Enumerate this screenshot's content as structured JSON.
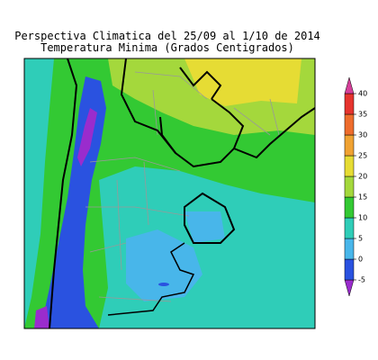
{
  "header": {
    "title": "Perspectiva Climatica del 25/09 al 1/10 de 2014",
    "subtitle": "Temperatura Minima (Grados Centigrados)"
  },
  "colorbar": {
    "ticks": [
      -5,
      0,
      5,
      10,
      15,
      20,
      25,
      30,
      35,
      40
    ],
    "colors": [
      "#9a2ccd",
      "#2a52e0",
      "#48b6ea",
      "#2fcdb8",
      "#33c933",
      "#a4d83c",
      "#e6dc34",
      "#f0a232",
      "#ee6c2c",
      "#e6342e",
      "#d6409a"
    ]
  }
}
